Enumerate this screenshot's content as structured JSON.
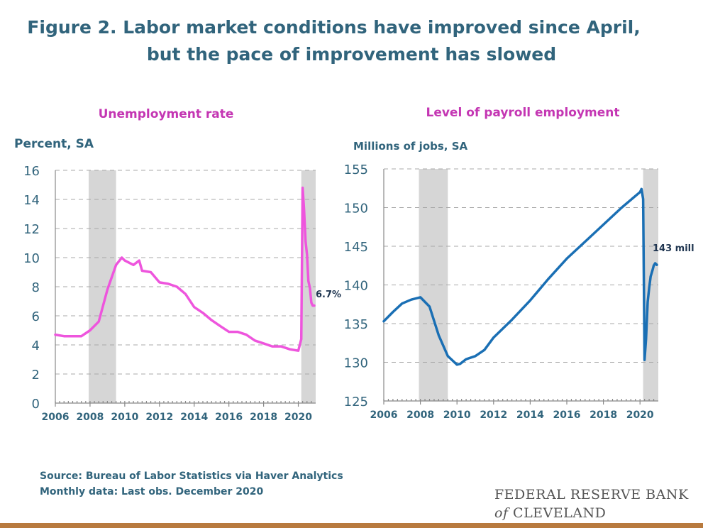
{
  "title_line1": "Figure 2. Labor market conditions have improved since April,",
  "title_line2": "but the pace of improvement has slowed",
  "source_line1": "Source: Bureau of Labor Statistics via Haver Analytics",
  "source_line2": "Monthly data: Last obs. December 2020",
  "logo_line1": "FEDERAL RESERVE BANK",
  "logo_of": "of",
  "logo_line2": "CLEVELAND",
  "colors": {
    "title": "#31647c",
    "unemployment": "#ee55dd",
    "payroll": "#1a6fb4",
    "recession": "#d6d6d6",
    "bottom_bar": "#b87a3e"
  },
  "chart_data": [
    {
      "type": "line",
      "title": "Unemployment rate",
      "ylabel": "Percent, SA",
      "xlim": [
        2006,
        2021
      ],
      "ylim": [
        0,
        16
      ],
      "xticks": [
        "2006",
        "2008",
        "2010",
        "2012",
        "2014",
        "2016",
        "2018",
        "2020"
      ],
      "yticks": [
        "0",
        "2",
        "4",
        "6",
        "8",
        "10",
        "12",
        "14",
        "16"
      ],
      "grid": true,
      "recessions": [
        [
          2007.92,
          2009.5
        ],
        [
          2020.17,
          2021.0
        ]
      ],
      "annotation": "6.7%",
      "x": [
        2006.0,
        2006.5,
        2007.0,
        2007.5,
        2008.0,
        2008.5,
        2009.0,
        2009.5,
        2009.83,
        2010.0,
        2010.5,
        2010.83,
        2011.0,
        2011.5,
        2012.0,
        2012.5,
        2013.0,
        2013.5,
        2014.0,
        2014.5,
        2015.0,
        2015.5,
        2016.0,
        2016.5,
        2017.0,
        2017.5,
        2018.0,
        2018.5,
        2019.0,
        2019.5,
        2020.0,
        2020.17,
        2020.25,
        2020.33,
        2020.42,
        2020.5,
        2020.58,
        2020.67,
        2020.75,
        2020.83,
        2020.92
      ],
      "y": [
        4.7,
        4.6,
        4.6,
        4.6,
        5.0,
        5.6,
        7.8,
        9.5,
        10.0,
        9.8,
        9.5,
        9.8,
        9.1,
        9.0,
        8.3,
        8.2,
        8.0,
        7.5,
        6.6,
        6.2,
        5.7,
        5.3,
        4.9,
        4.9,
        4.7,
        4.3,
        4.1,
        3.9,
        3.9,
        3.7,
        3.6,
        4.4,
        14.8,
        13.3,
        11.1,
        10.2,
        8.4,
        7.9,
        6.9,
        6.7,
        6.7
      ]
    },
    {
      "type": "line",
      "title": "Level of payroll employment",
      "ylabel": "Millions of jobs, SA",
      "xlim": [
        2006,
        2021
      ],
      "ylim": [
        125,
        155
      ],
      "xticks": [
        "2006",
        "2008",
        "2010",
        "2012",
        "2014",
        "2016",
        "2018",
        "2020"
      ],
      "yticks": [
        "125",
        "130",
        "135",
        "140",
        "145",
        "150",
        "155"
      ],
      "grid": true,
      "recessions": [
        [
          2007.92,
          2009.5
        ],
        [
          2020.17,
          2021.0
        ]
      ],
      "annotation": "143 mill",
      "x": [
        2006.0,
        2006.5,
        2007.0,
        2007.5,
        2008.0,
        2008.5,
        2009.0,
        2009.5,
        2010.0,
        2010.17,
        2010.5,
        2011.0,
        2011.5,
        2012.0,
        2013.0,
        2014.0,
        2015.0,
        2016.0,
        2017.0,
        2018.0,
        2019.0,
        2020.0,
        2020.08,
        2020.17,
        2020.25,
        2020.33,
        2020.42,
        2020.5,
        2020.58,
        2020.67,
        2020.75,
        2020.83,
        2020.92
      ],
      "y": [
        135.3,
        136.5,
        137.6,
        138.1,
        138.4,
        137.2,
        133.5,
        130.8,
        129.7,
        129.8,
        130.4,
        130.8,
        131.6,
        133.2,
        135.5,
        138.0,
        140.8,
        143.4,
        145.6,
        147.8,
        150.0,
        152.0,
        152.4,
        151.1,
        130.3,
        133.0,
        137.8,
        139.6,
        141.1,
        141.8,
        142.5,
        142.8,
        142.6
      ]
    }
  ]
}
